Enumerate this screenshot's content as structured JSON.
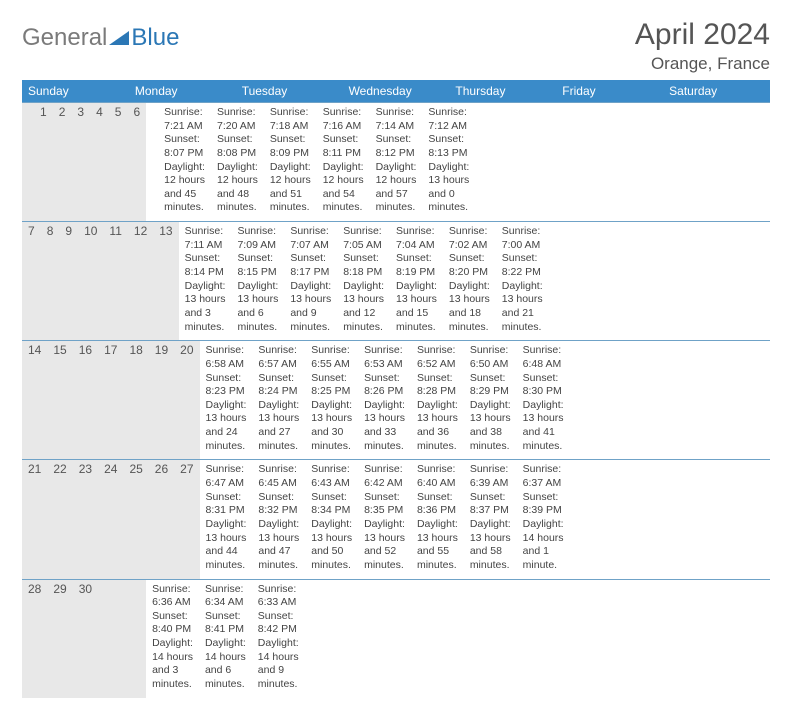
{
  "brand": {
    "part1": "General",
    "part2": "Blue"
  },
  "title": "April 2024",
  "location": "Orange, France",
  "colors": {
    "header_bg": "#3a8bc9",
    "header_text": "#ffffff",
    "daynum_bg": "#e8e8e8",
    "rule": "#6fa2c7",
    "text": "#444444",
    "logo_gray": "#7a7a7a",
    "logo_blue": "#2b77b5"
  },
  "typography": {
    "title_fontsize": 30,
    "location_fontsize": 17,
    "dow_fontsize": 12,
    "body_fontsize": 10.5
  },
  "dow": [
    "Sunday",
    "Monday",
    "Tuesday",
    "Wednesday",
    "Thursday",
    "Friday",
    "Saturday"
  ],
  "weeks": [
    [
      {
        "n": "",
        "sr": "",
        "ss": "",
        "dl": ""
      },
      {
        "n": "1",
        "sr": "Sunrise: 7:21 AM",
        "ss": "Sunset: 8:07 PM",
        "dl": "Daylight: 12 hours and 45 minutes."
      },
      {
        "n": "2",
        "sr": "Sunrise: 7:20 AM",
        "ss": "Sunset: 8:08 PM",
        "dl": "Daylight: 12 hours and 48 minutes."
      },
      {
        "n": "3",
        "sr": "Sunrise: 7:18 AM",
        "ss": "Sunset: 8:09 PM",
        "dl": "Daylight: 12 hours and 51 minutes."
      },
      {
        "n": "4",
        "sr": "Sunrise: 7:16 AM",
        "ss": "Sunset: 8:11 PM",
        "dl": "Daylight: 12 hours and 54 minutes."
      },
      {
        "n": "5",
        "sr": "Sunrise: 7:14 AM",
        "ss": "Sunset: 8:12 PM",
        "dl": "Daylight: 12 hours and 57 minutes."
      },
      {
        "n": "6",
        "sr": "Sunrise: 7:12 AM",
        "ss": "Sunset: 8:13 PM",
        "dl": "Daylight: 13 hours and 0 minutes."
      }
    ],
    [
      {
        "n": "7",
        "sr": "Sunrise: 7:11 AM",
        "ss": "Sunset: 8:14 PM",
        "dl": "Daylight: 13 hours and 3 minutes."
      },
      {
        "n": "8",
        "sr": "Sunrise: 7:09 AM",
        "ss": "Sunset: 8:15 PM",
        "dl": "Daylight: 13 hours and 6 minutes."
      },
      {
        "n": "9",
        "sr": "Sunrise: 7:07 AM",
        "ss": "Sunset: 8:17 PM",
        "dl": "Daylight: 13 hours and 9 minutes."
      },
      {
        "n": "10",
        "sr": "Sunrise: 7:05 AM",
        "ss": "Sunset: 8:18 PM",
        "dl": "Daylight: 13 hours and 12 minutes."
      },
      {
        "n": "11",
        "sr": "Sunrise: 7:04 AM",
        "ss": "Sunset: 8:19 PM",
        "dl": "Daylight: 13 hours and 15 minutes."
      },
      {
        "n": "12",
        "sr": "Sunrise: 7:02 AM",
        "ss": "Sunset: 8:20 PM",
        "dl": "Daylight: 13 hours and 18 minutes."
      },
      {
        "n": "13",
        "sr": "Sunrise: 7:00 AM",
        "ss": "Sunset: 8:22 PM",
        "dl": "Daylight: 13 hours and 21 minutes."
      }
    ],
    [
      {
        "n": "14",
        "sr": "Sunrise: 6:58 AM",
        "ss": "Sunset: 8:23 PM",
        "dl": "Daylight: 13 hours and 24 minutes."
      },
      {
        "n": "15",
        "sr": "Sunrise: 6:57 AM",
        "ss": "Sunset: 8:24 PM",
        "dl": "Daylight: 13 hours and 27 minutes."
      },
      {
        "n": "16",
        "sr": "Sunrise: 6:55 AM",
        "ss": "Sunset: 8:25 PM",
        "dl": "Daylight: 13 hours and 30 minutes."
      },
      {
        "n": "17",
        "sr": "Sunrise: 6:53 AM",
        "ss": "Sunset: 8:26 PM",
        "dl": "Daylight: 13 hours and 33 minutes."
      },
      {
        "n": "18",
        "sr": "Sunrise: 6:52 AM",
        "ss": "Sunset: 8:28 PM",
        "dl": "Daylight: 13 hours and 36 minutes."
      },
      {
        "n": "19",
        "sr": "Sunrise: 6:50 AM",
        "ss": "Sunset: 8:29 PM",
        "dl": "Daylight: 13 hours and 38 minutes."
      },
      {
        "n": "20",
        "sr": "Sunrise: 6:48 AM",
        "ss": "Sunset: 8:30 PM",
        "dl": "Daylight: 13 hours and 41 minutes."
      }
    ],
    [
      {
        "n": "21",
        "sr": "Sunrise: 6:47 AM",
        "ss": "Sunset: 8:31 PM",
        "dl": "Daylight: 13 hours and 44 minutes."
      },
      {
        "n": "22",
        "sr": "Sunrise: 6:45 AM",
        "ss": "Sunset: 8:32 PM",
        "dl": "Daylight: 13 hours and 47 minutes."
      },
      {
        "n": "23",
        "sr": "Sunrise: 6:43 AM",
        "ss": "Sunset: 8:34 PM",
        "dl": "Daylight: 13 hours and 50 minutes."
      },
      {
        "n": "24",
        "sr": "Sunrise: 6:42 AM",
        "ss": "Sunset: 8:35 PM",
        "dl": "Daylight: 13 hours and 52 minutes."
      },
      {
        "n": "25",
        "sr": "Sunrise: 6:40 AM",
        "ss": "Sunset: 8:36 PM",
        "dl": "Daylight: 13 hours and 55 minutes."
      },
      {
        "n": "26",
        "sr": "Sunrise: 6:39 AM",
        "ss": "Sunset: 8:37 PM",
        "dl": "Daylight: 13 hours and 58 minutes."
      },
      {
        "n": "27",
        "sr": "Sunrise: 6:37 AM",
        "ss": "Sunset: 8:39 PM",
        "dl": "Daylight: 14 hours and 1 minute."
      }
    ],
    [
      {
        "n": "28",
        "sr": "Sunrise: 6:36 AM",
        "ss": "Sunset: 8:40 PM",
        "dl": "Daylight: 14 hours and 3 minutes."
      },
      {
        "n": "29",
        "sr": "Sunrise: 6:34 AM",
        "ss": "Sunset: 8:41 PM",
        "dl": "Daylight: 14 hours and 6 minutes."
      },
      {
        "n": "30",
        "sr": "Sunrise: 6:33 AM",
        "ss": "Sunset: 8:42 PM",
        "dl": "Daylight: 14 hours and 9 minutes."
      },
      {
        "n": "",
        "sr": "",
        "ss": "",
        "dl": ""
      },
      {
        "n": "",
        "sr": "",
        "ss": "",
        "dl": ""
      },
      {
        "n": "",
        "sr": "",
        "ss": "",
        "dl": ""
      },
      {
        "n": "",
        "sr": "",
        "ss": "",
        "dl": ""
      }
    ]
  ]
}
